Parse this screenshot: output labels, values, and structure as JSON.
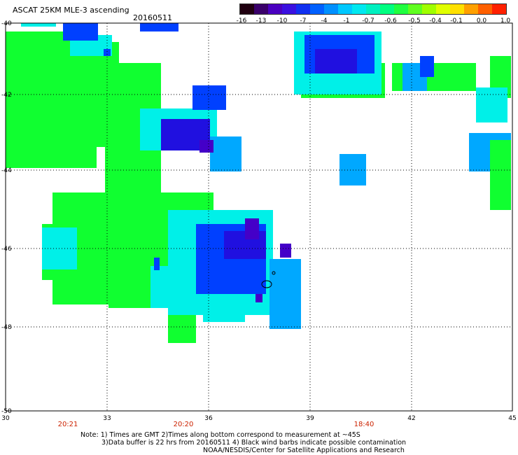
{
  "header": {
    "title": "ASCAT 25KM MLE-3 ascending",
    "date": "20160511"
  },
  "colorbar": {
    "colors": [
      "#200010",
      "#3a006a",
      "#4a00c0",
      "#3a10e0",
      "#1030f0",
      "#0060ff",
      "#0090ff",
      "#00c8ff",
      "#00e8f0",
      "#00f0c0",
      "#00ff80",
      "#20ff40",
      "#60ff20",
      "#a0ff00",
      "#e0ff00",
      "#ffe000",
      "#ffa000",
      "#ff6000",
      "#ff2000"
    ],
    "labels": [
      "-16",
      "-13",
      "-10",
      "-7",
      "-4",
      "-1",
      "-0.7",
      "-0.6",
      "-0.5",
      "-0.4",
      "-0.1",
      "0.0",
      "1.0"
    ]
  },
  "axes": {
    "lat_labels": [
      "-40",
      "-42",
      "-44",
      "-46",
      "-48",
      "-50"
    ],
    "lon_labels": [
      "30",
      "33",
      "36",
      "39",
      "42",
      "45"
    ],
    "time_labels": [
      "20:21",
      "20:20",
      "18:40"
    ]
  },
  "notes": {
    "line1": "Note: 1) Times are GMT 2)Times along bottom correspond to measurement at ~45S",
    "line2": "3)Data buffer is 22 hrs from 20160511 4) Black wind barbs indicate possible contamination",
    "line3": "NOAA/NESDIS/Center for Satellite Applications and Research"
  },
  "colors": {
    "green": "#10ff30",
    "cyan": "#00f0e8",
    "lightblue": "#00a8ff",
    "blue": "#0040ff",
    "deepblue": "#2010e0",
    "indigo": "#4400c8",
    "time_text": "#cc2200"
  }
}
